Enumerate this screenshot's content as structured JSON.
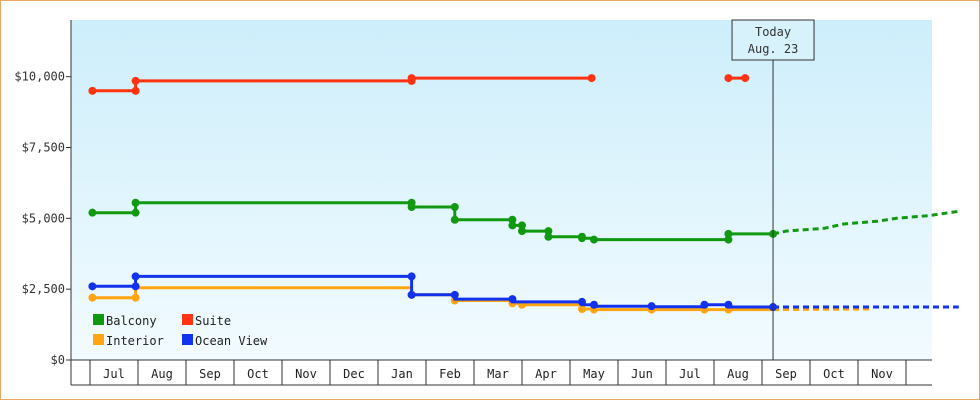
{
  "chart_data": {
    "type": "line",
    "title": "",
    "xlabel": "",
    "ylabel": "",
    "y_ticks": [
      "$0",
      "$2,500",
      "$5,000",
      "$7,500",
      "$10,000"
    ],
    "ylim": [
      0,
      12000
    ],
    "x_months": [
      "Jul",
      "Aug",
      "Sep",
      "Oct",
      "Nov",
      "Dec",
      "Jan",
      "Feb",
      "Mar",
      "Apr",
      "May",
      "Jun",
      "Jul",
      "Aug",
      "Sep",
      "Oct",
      "Nov"
    ],
    "today": {
      "line1": "Today",
      "line2": "Aug. 23",
      "month_index": 13.73
    },
    "legend": [
      {
        "name": "Balcony",
        "color": "#119911"
      },
      {
        "name": "Suite",
        "color": "#ff3311"
      },
      {
        "name": "Interior",
        "color": "#ffa511"
      },
      {
        "name": "Ocean View",
        "color": "#1133ee"
      }
    ],
    "series": [
      {
        "name": "Balcony",
        "color": "#119911",
        "points": [
          [
            -0.45,
            5200
          ],
          [
            0.45,
            5200
          ],
          [
            0.45,
            5550
          ],
          [
            6.2,
            5550
          ],
          [
            6.2,
            5400
          ],
          [
            7.1,
            5400
          ],
          [
            7.1,
            4950
          ],
          [
            8.3,
            4950
          ],
          [
            8.3,
            4750
          ],
          [
            8.5,
            4750
          ],
          [
            8.5,
            4550
          ],
          [
            9.05,
            4550
          ],
          [
            9.05,
            4350
          ],
          [
            9.75,
            4350
          ],
          [
            9.75,
            4300
          ],
          [
            10.0,
            4300
          ],
          [
            10.0,
            4250
          ],
          [
            12.8,
            4250
          ],
          [
            12.8,
            4450
          ],
          [
            13.73,
            4450
          ]
        ],
        "dots": [
          [
            -0.45,
            5200
          ],
          [
            0.45,
            5200
          ],
          [
            0.45,
            5550
          ],
          [
            6.2,
            5550
          ],
          [
            6.2,
            5400
          ],
          [
            7.1,
            5400
          ],
          [
            7.1,
            4950
          ],
          [
            8.3,
            4950
          ],
          [
            8.3,
            4750
          ],
          [
            8.5,
            4750
          ],
          [
            8.5,
            4550
          ],
          [
            9.05,
            4550
          ],
          [
            9.05,
            4350
          ],
          [
            9.75,
            4350
          ],
          [
            9.75,
            4300
          ],
          [
            10.0,
            4250
          ],
          [
            12.8,
            4250
          ],
          [
            12.8,
            4450
          ],
          [
            13.73,
            4450
          ]
        ],
        "forecast": [
          [
            13.73,
            4450
          ],
          [
            14.0,
            4550
          ],
          [
            14.8,
            4650
          ],
          [
            15.2,
            4800
          ],
          [
            15.9,
            4900
          ],
          [
            16.3,
            5000
          ],
          [
            17.0,
            5100
          ],
          [
            17.6,
            5250
          ]
        ]
      },
      {
        "name": "Suite",
        "color": "#ff3311",
        "points": [
          [
            -0.45,
            9500
          ],
          [
            0.45,
            9500
          ],
          [
            0.45,
            9850
          ],
          [
            6.2,
            9850
          ],
          [
            6.2,
            9950
          ],
          [
            9.95,
            9950
          ]
        ],
        "dots": [
          [
            -0.45,
            9500
          ],
          [
            0.45,
            9500
          ],
          [
            0.45,
            9850
          ],
          [
            6.2,
            9850
          ],
          [
            6.2,
            9950
          ],
          [
            9.95,
            9950
          ]
        ],
        "segments": [
          [
            [
              12.8,
              9950
            ],
            [
              13.15,
              9950
            ]
          ]
        ]
      },
      {
        "name": "Interior",
        "color": "#ffa511",
        "points": [
          [
            -0.45,
            2200
          ],
          [
            0.45,
            2200
          ],
          [
            0.45,
            2550
          ],
          [
            6.2,
            2550
          ],
          [
            6.2,
            2300
          ],
          [
            7.1,
            2300
          ],
          [
            7.1,
            2100
          ],
          [
            8.3,
            2100
          ],
          [
            8.3,
            2000
          ],
          [
            8.5,
            2000
          ],
          [
            8.5,
            1950
          ],
          [
            9.75,
            1950
          ],
          [
            9.75,
            1800
          ],
          [
            10.0,
            1800
          ],
          [
            10.0,
            1780
          ],
          [
            12.8,
            1780
          ],
          [
            12.8,
            1780
          ],
          [
            13.73,
            1780
          ]
        ],
        "dots": [
          [
            -0.45,
            2200
          ],
          [
            0.45,
            2200
          ],
          [
            6.2,
            2300
          ],
          [
            7.1,
            2100
          ],
          [
            8.3,
            2000
          ],
          [
            8.5,
            1950
          ],
          [
            9.75,
            1800
          ],
          [
            10.0,
            1780
          ],
          [
            11.2,
            1780
          ],
          [
            12.3,
            1780
          ],
          [
            12.8,
            1780
          ]
        ],
        "forecast": [
          [
            13.73,
            1780
          ],
          [
            15.8,
            1800
          ]
        ]
      },
      {
        "name": "Ocean View",
        "color": "#1133ee",
        "points": [
          [
            -0.45,
            2600
          ],
          [
            0.45,
            2600
          ],
          [
            0.45,
            2950
          ],
          [
            6.2,
            2950
          ],
          [
            6.2,
            2300
          ],
          [
            7.1,
            2300
          ],
          [
            7.1,
            2150
          ],
          [
            8.3,
            2150
          ],
          [
            8.3,
            2050
          ],
          [
            9.75,
            2050
          ],
          [
            9.75,
            1950
          ],
          [
            10.0,
            1950
          ],
          [
            10.0,
            1900
          ],
          [
            11.2,
            1900
          ],
          [
            11.2,
            1880
          ],
          [
            12.3,
            1880
          ],
          [
            12.3,
            1950
          ],
          [
            12.8,
            1950
          ],
          [
            12.8,
            1870
          ],
          [
            13.73,
            1870
          ]
        ],
        "dots": [
          [
            -0.45,
            2600
          ],
          [
            0.45,
            2600
          ],
          [
            0.45,
            2950
          ],
          [
            6.2,
            2950
          ],
          [
            6.2,
            2300
          ],
          [
            7.1,
            2300
          ],
          [
            8.3,
            2150
          ],
          [
            9.75,
            2050
          ],
          [
            10.0,
            1950
          ],
          [
            11.2,
            1900
          ],
          [
            12.3,
            1950
          ],
          [
            12.8,
            1950
          ],
          [
            13.73,
            1870
          ]
        ],
        "forecast": [
          [
            13.73,
            1870
          ],
          [
            17.6,
            1870
          ]
        ]
      }
    ],
    "grid": false,
    "legend_position": "bottom-left"
  }
}
